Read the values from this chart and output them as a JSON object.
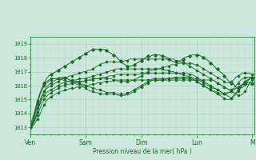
{
  "bg_color": "#cce8dc",
  "grid_color_major": "#aacfbc",
  "grid_color_minor": "#bddece",
  "line_color": "#1a6b2a",
  "ylabel": "Pression niveau de la mer( hPa )",
  "ylim": [
    1012.5,
    1019.5
  ],
  "yticks": [
    1013,
    1014,
    1015,
    1016,
    1017,
    1018,
    1019
  ],
  "xtick_labels": [
    "Ven",
    "Sam",
    "Dim",
    "Lun",
    "M"
  ],
  "xtick_positions": [
    0,
    24,
    48,
    72,
    96
  ],
  "series": [
    [
      1013.0,
      1013.1,
      1013.3,
      1013.6,
      1013.9,
      1014.3,
      1014.6,
      1014.9,
      1015.1,
      1015.2,
      1015.3,
      1015.4,
      1015.5,
      1015.6,
      1015.6,
      1015.7,
      1015.7,
      1015.8,
      1015.8,
      1015.8,
      1015.9,
      1015.9,
      1015.9,
      1016.0,
      1016.0,
      1016.0,
      1016.1,
      1016.1,
      1016.1,
      1016.2,
      1016.2,
      1016.2,
      1016.3,
      1016.3,
      1016.3,
      1016.3,
      1016.4,
      1016.4,
      1016.4,
      1016.4,
      1016.4,
      1016.4,
      1016.4,
      1016.4,
      1016.4,
      1016.4,
      1016.4,
      1016.4,
      1016.4,
      1016.4,
      1016.4,
      1016.4,
      1016.4,
      1016.4,
      1016.4,
      1016.4,
      1016.4,
      1016.4,
      1016.4,
      1016.4,
      1016.4,
      1016.4,
      1016.4,
      1016.4,
      1016.4,
      1016.4,
      1016.4,
      1016.4,
      1016.4,
      1016.4,
      1016.4,
      1016.4,
      1016.4,
      1016.4,
      1016.4,
      1016.4,
      1016.4,
      1016.4,
      1016.4,
      1016.4,
      1016.3,
      1016.2,
      1016.1,
      1016.0,
      1015.9,
      1015.8,
      1015.7,
      1015.6,
      1015.5,
      1015.4,
      1015.3,
      1015.3,
      1015.4,
      1015.6,
      1015.9,
      1016.2,
      1016.4,
      1016.5,
      1016.5
    ],
    [
      1013.0,
      1013.2,
      1013.5,
      1013.9,
      1014.3,
      1014.7,
      1015.0,
      1015.2,
      1015.4,
      1015.5,
      1015.6,
      1015.7,
      1015.8,
      1015.9,
      1016.0,
      1016.0,
      1016.1,
      1016.1,
      1016.2,
      1016.2,
      1016.2,
      1016.3,
      1016.3,
      1016.3,
      1016.3,
      1016.4,
      1016.4,
      1016.4,
      1016.5,
      1016.5,
      1016.5,
      1016.6,
      1016.6,
      1016.6,
      1016.7,
      1016.7,
      1016.7,
      1016.8,
      1016.8,
      1016.8,
      1016.8,
      1016.8,
      1016.8,
      1016.8,
      1016.8,
      1016.8,
      1016.8,
      1016.8,
      1016.9,
      1016.9,
      1016.9,
      1016.9,
      1016.9,
      1016.9,
      1016.9,
      1016.9,
      1016.9,
      1016.9,
      1016.9,
      1016.9,
      1016.9,
      1016.9,
      1016.9,
      1016.9,
      1016.9,
      1016.9,
      1016.9,
      1016.9,
      1016.9,
      1016.8,
      1016.8,
      1016.7,
      1016.6,
      1016.5,
      1016.4,
      1016.3,
      1016.2,
      1016.1,
      1016.0,
      1015.9,
      1015.8,
      1015.7,
      1015.6,
      1015.5,
      1015.4,
      1015.3,
      1015.2,
      1015.1,
      1015.2,
      1015.4,
      1015.6,
      1015.9,
      1016.1,
      1016.3,
      1016.4,
      1016.5,
      1016.6,
      1016.6
    ],
    [
      1013.0,
      1013.3,
      1013.7,
      1014.1,
      1014.6,
      1015.0,
      1015.3,
      1015.5,
      1015.6,
      1015.7,
      1015.8,
      1015.9,
      1016.0,
      1016.1,
      1016.2,
      1016.2,
      1016.3,
      1016.3,
      1016.4,
      1016.4,
      1016.4,
      1016.5,
      1016.5,
      1016.5,
      1016.5,
      1016.6,
      1016.6,
      1016.7,
      1016.7,
      1016.8,
      1016.8,
      1016.9,
      1016.9,
      1017.0,
      1017.0,
      1017.1,
      1017.1,
      1017.2,
      1017.2,
      1017.2,
      1017.2,
      1017.2,
      1017.2,
      1017.2,
      1017.2,
      1017.2,
      1017.2,
      1017.2,
      1017.2,
      1017.2,
      1017.2,
      1017.2,
      1017.2,
      1017.2,
      1017.2,
      1017.2,
      1017.2,
      1017.2,
      1017.1,
      1017.1,
      1017.1,
      1017.0,
      1017.0,
      1016.9,
      1016.9,
      1016.8,
      1016.8,
      1016.7,
      1016.7,
      1016.6,
      1016.5,
      1016.4,
      1016.3,
      1016.2,
      1016.1,
      1016.0,
      1015.9,
      1015.8,
      1015.7,
      1015.6,
      1015.5,
      1015.4,
      1015.3,
      1015.2,
      1015.1,
      1015.0,
      1015.0,
      1015.1,
      1015.3,
      1015.5,
      1015.7,
      1015.9,
      1016.1,
      1016.3,
      1016.4,
      1016.5,
      1016.6,
      1016.6
    ],
    [
      1013.0,
      1013.4,
      1013.9,
      1014.4,
      1014.9,
      1015.3,
      1015.6,
      1015.8,
      1015.9,
      1016.0,
      1016.1,
      1016.2,
      1016.3,
      1016.4,
      1016.5,
      1016.6,
      1016.6,
      1016.7,
      1016.7,
      1016.8,
      1016.8,
      1016.9,
      1016.9,
      1017.0,
      1017.0,
      1017.1,
      1017.1,
      1017.2,
      1017.3,
      1017.4,
      1017.5,
      1017.6,
      1017.6,
      1017.7,
      1017.7,
      1017.7,
      1017.7,
      1017.7,
      1017.7,
      1017.7,
      1017.7,
      1017.8,
      1017.8,
      1017.9,
      1017.9,
      1017.9,
      1017.9,
      1017.9,
      1017.9,
      1017.9,
      1017.9,
      1017.9,
      1017.9,
      1017.9,
      1017.9,
      1017.9,
      1017.9,
      1017.9,
      1017.9,
      1017.9,
      1017.9,
      1017.9,
      1017.9,
      1017.8,
      1017.8,
      1017.7,
      1017.7,
      1017.6,
      1017.5,
      1017.4,
      1017.3,
      1017.2,
      1017.1,
      1017.0,
      1016.9,
      1016.8,
      1016.7,
      1016.6,
      1016.5,
      1016.4,
      1016.3,
      1016.2,
      1016.1,
      1016.0,
      1015.9,
      1015.8,
      1015.7,
      1015.7,
      1015.8,
      1016.0,
      1016.2,
      1016.4,
      1016.5,
      1016.6,
      1016.6,
      1016.6,
      1016.5,
      1016.5
    ],
    [
      1013.0,
      1013.2,
      1013.6,
      1014.1,
      1014.7,
      1015.2,
      1015.6,
      1015.9,
      1016.1,
      1016.2,
      1016.3,
      1016.4,
      1016.5,
      1016.6,
      1016.6,
      1016.6,
      1016.5,
      1016.4,
      1016.3,
      1016.3,
      1016.3,
      1016.3,
      1016.3,
      1016.3,
      1016.4,
      1016.4,
      1016.4,
      1016.5,
      1016.5,
      1016.5,
      1016.5,
      1016.5,
      1016.5,
      1016.5,
      1016.5,
      1016.5,
      1016.4,
      1016.4,
      1016.3,
      1016.3,
      1016.3,
      1016.3,
      1016.3,
      1016.3,
      1016.4,
      1016.4,
      1016.5,
      1016.6,
      1016.7,
      1016.8,
      1016.9,
      1017.0,
      1017.1,
      1017.1,
      1017.2,
      1017.2,
      1017.2,
      1017.3,
      1017.3,
      1017.4,
      1017.4,
      1017.5,
      1017.5,
      1017.5,
      1017.6,
      1017.6,
      1017.6,
      1017.6,
      1017.6,
      1017.6,
      1017.6,
      1017.5,
      1017.5,
      1017.4,
      1017.3,
      1017.2,
      1017.1,
      1017.0,
      1016.9,
      1016.8,
      1016.7,
      1016.6,
      1016.5,
      1016.4,
      1016.3,
      1016.2,
      1016.2,
      1016.3,
      1016.4,
      1016.6,
      1016.7,
      1016.8,
      1016.9,
      1016.9,
      1016.9,
      1016.9,
      1016.8,
      1016.8
    ],
    [
      1013.1,
      1013.5,
      1014.1,
      1014.8,
      1015.3,
      1015.7,
      1016.0,
      1016.2,
      1016.3,
      1016.4,
      1016.5,
      1016.5,
      1016.5,
      1016.5,
      1016.5,
      1016.5,
      1016.5,
      1016.4,
      1016.4,
      1016.3,
      1016.3,
      1016.2,
      1016.1,
      1016.1,
      1016.0,
      1015.9,
      1015.9,
      1015.8,
      1015.8,
      1015.7,
      1015.7,
      1015.6,
      1015.6,
      1015.5,
      1015.5,
      1015.5,
      1015.5,
      1015.4,
      1015.4,
      1015.4,
      1015.4,
      1015.4,
      1015.5,
      1015.5,
      1015.6,
      1015.7,
      1015.8,
      1015.9,
      1016.0,
      1016.1,
      1016.2,
      1016.3,
      1016.4,
      1016.5,
      1016.5,
      1016.5,
      1016.5,
      1016.5,
      1016.5,
      1016.5,
      1016.5,
      1016.5,
      1016.6,
      1016.6,
      1016.6,
      1016.6,
      1016.6,
      1016.6,
      1016.6,
      1016.6,
      1016.6,
      1016.5,
      1016.5,
      1016.4,
      1016.3,
      1016.2,
      1016.1,
      1016.0,
      1015.9,
      1015.8,
      1015.8,
      1015.7,
      1015.6,
      1015.5,
      1015.4,
      1015.4,
      1015.5,
      1015.6,
      1015.7,
      1015.8,
      1015.9,
      1016.0,
      1016.1,
      1016.2,
      1016.2,
      1016.2,
      1016.2,
      1016.2
    ],
    [
      1013.2,
      1013.7,
      1014.3,
      1014.9,
      1015.4,
      1015.8,
      1016.1,
      1016.3,
      1016.4,
      1016.5,
      1016.5,
      1016.5,
      1016.5,
      1016.5,
      1016.4,
      1016.4,
      1016.3,
      1016.3,
      1016.2,
      1016.2,
      1016.1,
      1016.1,
      1016.0,
      1015.9,
      1015.8,
      1015.7,
      1015.6,
      1015.6,
      1015.5,
      1015.5,
      1015.4,
      1015.4,
      1015.4,
      1015.4,
      1015.4,
      1015.4,
      1015.4,
      1015.4,
      1015.3,
      1015.3,
      1015.3,
      1015.3,
      1015.4,
      1015.4,
      1015.5,
      1015.6,
      1015.7,
      1015.8,
      1015.9,
      1016.0,
      1016.1,
      1016.2,
      1016.3,
      1016.4,
      1016.4,
      1016.4,
      1016.4,
      1016.4,
      1016.4,
      1016.5,
      1016.5,
      1016.5,
      1016.5,
      1016.5,
      1016.5,
      1016.5,
      1016.5,
      1016.5,
      1016.5,
      1016.4,
      1016.4,
      1016.4,
      1016.3,
      1016.2,
      1016.1,
      1016.0,
      1015.9,
      1015.8,
      1015.7,
      1015.6,
      1015.6,
      1015.5,
      1015.4,
      1015.4,
      1015.4,
      1015.5,
      1015.5,
      1015.6,
      1015.7,
      1015.8,
      1015.9,
      1016.0,
      1016.1,
      1016.1,
      1016.1,
      1016.1,
      1016.1,
      1016.1
    ],
    [
      1013.0,
      1013.4,
      1014.0,
      1014.7,
      1015.3,
      1015.8,
      1016.2,
      1016.5,
      1016.7,
      1016.8,
      1016.9,
      1017.0,
      1017.1,
      1017.2,
      1017.3,
      1017.4,
      1017.5,
      1017.6,
      1017.7,
      1017.8,
      1017.9,
      1018.0,
      1018.1,
      1018.2,
      1018.3,
      1018.4,
      1018.5,
      1018.6,
      1018.6,
      1018.6,
      1018.6,
      1018.6,
      1018.6,
      1018.5,
      1018.4,
      1018.3,
      1018.2,
      1018.1,
      1017.9,
      1017.8,
      1017.6,
      1017.5,
      1017.4,
      1017.4,
      1017.4,
      1017.5,
      1017.6,
      1017.7,
      1017.8,
      1017.9,
      1018.0,
      1018.1,
      1018.1,
      1018.2,
      1018.2,
      1018.2,
      1018.2,
      1018.1,
      1018.1,
      1018.0,
      1017.9,
      1017.8,
      1017.7,
      1017.7,
      1017.7,
      1017.8,
      1017.9,
      1018.0,
      1018.1,
      1018.1,
      1018.2,
      1018.2,
      1018.2,
      1018.2,
      1018.1,
      1018.0,
      1017.9,
      1017.8,
      1017.6,
      1017.5,
      1017.3,
      1017.2,
      1017.0,
      1016.9,
      1016.7,
      1016.5,
      1016.3,
      1016.2,
      1016.1,
      1015.9,
      1015.8,
      1015.8,
      1015.9,
      1016.1,
      1016.3,
      1016.5,
      1016.6,
      1016.6
    ]
  ]
}
